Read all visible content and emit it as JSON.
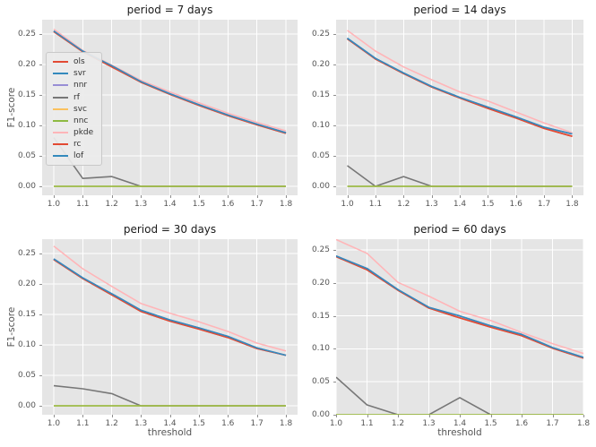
{
  "figure": {
    "ylabel": "F1-score",
    "xlabel": "threshold",
    "background_color": "#ffffff",
    "axes_background_color": "#e5e5e5",
    "grid_color": "#ffffff",
    "colors": {
      "ols": "#e24a33",
      "svr": "#348abd",
      "nnr": "#988ed5",
      "rf": "#777777",
      "svc": "#fbc15e",
      "nnc": "#8eba42",
      "pkde": "#ffb5b8",
      "rc": "#e24a33",
      "lof": "#348abd"
    },
    "legend_entries": [
      "ols",
      "svr",
      "nnr",
      "rf",
      "svc",
      "nnc",
      "pkde",
      "rc",
      "lof"
    ]
  },
  "chart_data": [
    {
      "type": "line",
      "title": "period = 7 days",
      "ylabel": "F1-score",
      "grid": true,
      "legend": true,
      "legend_position": "center-left-inside",
      "x": [
        1.0,
        1.1,
        1.2,
        1.3,
        1.4,
        1.5,
        1.6,
        1.7,
        1.8
      ],
      "xlim": [
        0.96,
        1.84
      ],
      "ylim": [
        -0.0147,
        0.2735
      ],
      "xticks": [
        1.0,
        1.1,
        1.2,
        1.3,
        1.4,
        1.5,
        1.6,
        1.7,
        1.8
      ],
      "xtick_labels": [
        "1.0",
        "1.1",
        "1.2",
        "1.3",
        "1.4",
        "1.5",
        "1.6",
        "1.7",
        "1.8"
      ],
      "yticks": [
        0.0,
        0.05,
        0.1,
        0.15,
        0.2,
        0.25
      ],
      "ytick_labels": [
        "0.00",
        "0.05",
        "0.10",
        "0.15",
        "0.20",
        "0.25"
      ],
      "series": [
        {
          "name": "ols",
          "values": [
            0.254,
            0.221,
            0.196,
            0.171,
            0.151,
            0.133,
            0.116,
            0.101,
            0.087
          ]
        },
        {
          "name": "svr",
          "values": [
            0.255,
            0.222,
            0.198,
            0.172,
            0.152,
            0.134,
            0.117,
            0.102,
            0.088
          ]
        },
        {
          "name": "nnr",
          "values": [
            0.255,
            0.222,
            0.198,
            0.172,
            0.152,
            0.134,
            0.117,
            0.102,
            0.088
          ]
        },
        {
          "name": "rf",
          "values": [
            0.08,
            0.013,
            0.016,
            0.0,
            0.0,
            0.0,
            0.0,
            0.0,
            0.0
          ]
        },
        {
          "name": "svc",
          "values": [
            0.0,
            0.0,
            0.0,
            0.0,
            0.0,
            0.0,
            0.0,
            0.0,
            0.0
          ]
        },
        {
          "name": "nnc",
          "values": [
            0.0,
            0.0,
            0.0,
            0.0,
            0.0,
            0.0,
            0.0,
            0.0,
            0.0
          ]
        },
        {
          "name": "pkde",
          "values": [
            0.258,
            0.223,
            0.199,
            0.174,
            0.155,
            0.137,
            0.12,
            0.105,
            0.091
          ]
        },
        {
          "name": "rc",
          "values": [
            0.254,
            0.221,
            0.196,
            0.171,
            0.151,
            0.133,
            0.116,
            0.101,
            0.087
          ]
        },
        {
          "name": "lof",
          "values": [
            0.255,
            0.222,
            0.198,
            0.172,
            0.152,
            0.134,
            0.117,
            0.102,
            0.088
          ]
        }
      ]
    },
    {
      "type": "line",
      "title": "period = 14 days",
      "grid": true,
      "legend": false,
      "x": [
        1.0,
        1.1,
        1.2,
        1.3,
        1.4,
        1.5,
        1.6,
        1.7,
        1.8
      ],
      "xlim": [
        0.96,
        1.84
      ],
      "ylim": [
        -0.0147,
        0.2735
      ],
      "xticks": [
        1.0,
        1.1,
        1.2,
        1.3,
        1.4,
        1.5,
        1.6,
        1.7,
        1.8
      ],
      "xtick_labels": [
        "1.0",
        "1.1",
        "1.2",
        "1.3",
        "1.4",
        "1.5",
        "1.6",
        "1.7",
        "1.8"
      ],
      "yticks": [
        0.0,
        0.05,
        0.1,
        0.15,
        0.2,
        0.25
      ],
      "ytick_labels": [
        "0.00",
        "0.05",
        "0.10",
        "0.15",
        "0.20",
        "0.25"
      ],
      "series": [
        {
          "name": "ols",
          "values": [
            0.242,
            0.209,
            0.185,
            0.163,
            0.145,
            0.128,
            0.112,
            0.095,
            0.082
          ]
        },
        {
          "name": "svr",
          "values": [
            0.243,
            0.21,
            0.186,
            0.164,
            0.146,
            0.13,
            0.114,
            0.097,
            0.086
          ]
        },
        {
          "name": "nnr",
          "values": [
            0.243,
            0.21,
            0.186,
            0.164,
            0.146,
            0.13,
            0.114,
            0.097,
            0.086
          ]
        },
        {
          "name": "rf",
          "values": [
            0.034,
            0.0,
            0.016,
            0.0,
            0.0,
            0.0,
            0.0,
            0.0,
            0.0
          ]
        },
        {
          "name": "svc",
          "values": [
            0.0,
            0.0,
            0.0,
            0.0,
            0.0,
            0.0,
            0.0,
            0.0,
            0.0
          ]
        },
        {
          "name": "nnc",
          "values": [
            0.0,
            0.0,
            0.0,
            0.0,
            0.0,
            0.0,
            0.0,
            0.0,
            0.0
          ]
        },
        {
          "name": "pkde",
          "values": [
            0.256,
            0.222,
            0.196,
            0.175,
            0.155,
            0.14,
            0.122,
            0.104,
            0.088
          ]
        },
        {
          "name": "rc",
          "values": [
            0.242,
            0.209,
            0.185,
            0.163,
            0.145,
            0.128,
            0.112,
            0.095,
            0.082
          ]
        },
        {
          "name": "lof",
          "values": [
            0.243,
            0.21,
            0.186,
            0.164,
            0.146,
            0.13,
            0.114,
            0.097,
            0.086
          ]
        }
      ]
    },
    {
      "type": "line",
      "title": "period = 30 days",
      "ylabel": "F1-score",
      "xlabel": "threshold",
      "grid": true,
      "legend": false,
      "x": [
        1.0,
        1.1,
        1.2,
        1.3,
        1.4,
        1.5,
        1.6,
        1.7,
        1.8
      ],
      "xlim": [
        0.96,
        1.84
      ],
      "ylim": [
        -0.0147,
        0.2735
      ],
      "xticks": [
        1.0,
        1.1,
        1.2,
        1.3,
        1.4,
        1.5,
        1.6,
        1.7,
        1.8
      ],
      "xtick_labels": [
        "1.0",
        "1.1",
        "1.2",
        "1.3",
        "1.4",
        "1.5",
        "1.6",
        "1.7",
        "1.8"
      ],
      "yticks": [
        0.0,
        0.05,
        0.1,
        0.15,
        0.2,
        0.25
      ],
      "ytick_labels": [
        "0.00",
        "0.05",
        "0.10",
        "0.15",
        "0.20",
        "0.25"
      ],
      "series": [
        {
          "name": "ols",
          "values": [
            0.24,
            0.209,
            0.182,
            0.155,
            0.139,
            0.126,
            0.112,
            0.094,
            0.083
          ]
        },
        {
          "name": "svr",
          "values": [
            0.241,
            0.21,
            0.184,
            0.157,
            0.141,
            0.128,
            0.114,
            0.095,
            0.083
          ]
        },
        {
          "name": "nnr",
          "values": [
            0.241,
            0.21,
            0.184,
            0.157,
            0.141,
            0.128,
            0.114,
            0.095,
            0.083
          ]
        },
        {
          "name": "rf",
          "values": [
            0.033,
            0.028,
            0.02,
            0.0,
            0.0,
            0.0,
            0.0,
            0.0,
            0.0
          ]
        },
        {
          "name": "svc",
          "values": [
            0.0,
            0.0,
            0.0,
            0.0,
            0.0,
            0.0,
            0.0,
            0.0,
            0.0
          ]
        },
        {
          "name": "nnc",
          "values": [
            0.0,
            0.0,
            0.0,
            0.0,
            0.0,
            0.0,
            0.0,
            0.0,
            0.0
          ]
        },
        {
          "name": "pkde",
          "values": [
            0.262,
            0.225,
            0.196,
            0.168,
            0.152,
            0.138,
            0.122,
            0.103,
            0.09
          ]
        },
        {
          "name": "rc",
          "values": [
            0.24,
            0.209,
            0.182,
            0.155,
            0.139,
            0.126,
            0.112,
            0.094,
            0.083
          ]
        },
        {
          "name": "lof",
          "values": [
            0.241,
            0.21,
            0.184,
            0.157,
            0.141,
            0.128,
            0.114,
            0.095,
            0.083
          ]
        }
      ]
    },
    {
      "type": "line",
      "title": "period = 60 days",
      "xlabel": "threshold",
      "grid": true,
      "legend": false,
      "x": [
        1.0,
        1.1,
        1.2,
        1.3,
        1.4,
        1.5,
        1.6,
        1.7,
        1.8
      ],
      "xlim": [
        1.0,
        1.8
      ],
      "ylim": [
        0.0,
        0.2665
      ],
      "xticks": [
        1.0,
        1.1,
        1.2,
        1.3,
        1.4,
        1.5,
        1.6,
        1.7,
        1.8
      ],
      "xtick_labels": [
        "1.0",
        "1.1",
        "1.2",
        "1.3",
        "1.4",
        "1.5",
        "1.6",
        "1.7",
        "1.8"
      ],
      "yticks": [
        0.0,
        0.05,
        0.1,
        0.15,
        0.2,
        0.25
      ],
      "ytick_labels": [
        "0.00",
        "0.05",
        "0.10",
        "0.15",
        "0.20",
        "0.25"
      ],
      "series": [
        {
          "name": "ols",
          "values": [
            0.24,
            0.22,
            0.189,
            0.162,
            0.147,
            0.133,
            0.12,
            0.101,
            0.086
          ]
        },
        {
          "name": "svr",
          "values": [
            0.241,
            0.222,
            0.19,
            0.163,
            0.15,
            0.135,
            0.122,
            0.102,
            0.087
          ]
        },
        {
          "name": "nnr",
          "values": [
            0.241,
            0.222,
            0.19,
            0.163,
            0.15,
            0.135,
            0.122,
            0.102,
            0.087
          ]
        },
        {
          "name": "rf",
          "values": [
            0.057,
            0.015,
            0.0,
            0.0,
            0.026,
            0.0,
            0.0,
            0.0,
            0.0
          ]
        },
        {
          "name": "svc",
          "values": [
            0.0,
            0.0,
            0.0,
            0.0,
            0.0,
            0.0,
            0.0,
            0.0,
            0.0
          ]
        },
        {
          "name": "nnc",
          "values": [
            0.0,
            0.0,
            0.0,
            0.0,
            0.0,
            0.0,
            0.0,
            0.0,
            0.0
          ]
        },
        {
          "name": "pkde",
          "values": [
            0.266,
            0.245,
            0.201,
            0.18,
            0.157,
            0.143,
            0.125,
            0.108,
            0.093
          ]
        },
        {
          "name": "rc",
          "values": [
            0.24,
            0.22,
            0.189,
            0.162,
            0.147,
            0.133,
            0.12,
            0.101,
            0.086
          ]
        },
        {
          "name": "lof",
          "values": [
            0.241,
            0.222,
            0.19,
            0.163,
            0.15,
            0.135,
            0.122,
            0.102,
            0.087
          ]
        }
      ]
    }
  ]
}
